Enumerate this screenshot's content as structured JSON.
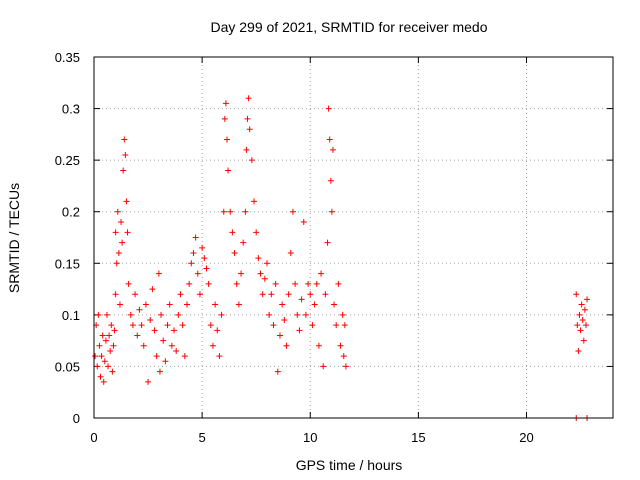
{
  "chart_data": {
    "type": "scatter",
    "title": "Day 299 of 2021, SRMTID for receiver medo",
    "xlabel": "GPS time / hours",
    "ylabel": "SRMTID / TECUs",
    "xlim": [
      0,
      24
    ],
    "ylim": [
      0,
      0.35
    ],
    "grid": true,
    "marker": "+",
    "color": "#ff0000",
    "xticks": [
      0,
      5,
      10,
      15,
      20
    ],
    "xtick_labels": [
      "0",
      "5",
      "10",
      "15",
      "20"
    ],
    "yticks": [
      0,
      0.05,
      0.1,
      0.15,
      0.2,
      0.25,
      0.3,
      0.35
    ],
    "ytick_labels": [
      "0",
      "0.05",
      "0.1",
      "0.15",
      "0.2",
      "0.25",
      "0.3",
      "0.35"
    ],
    "series": [
      {
        "name": "SRMTID",
        "points": [
          [
            0.05,
            0.06
          ],
          [
            0.1,
            0.09
          ],
          [
            0.15,
            0.05
          ],
          [
            0.2,
            0.1
          ],
          [
            0.25,
            0.07
          ],
          [
            0.3,
            0.04
          ],
          [
            0.35,
            0.06
          ],
          [
            0.4,
            0.08
          ],
          [
            0.45,
            0.035
          ],
          [
            0.5,
            0.055
          ],
          [
            0.55,
            0.075
          ],
          [
            0.6,
            0.1
          ],
          [
            0.65,
            0.05
          ],
          [
            0.7,
            0.08
          ],
          [
            0.75,
            0.065
          ],
          [
            0.8,
            0.09
          ],
          [
            0.85,
            0.045
          ],
          [
            0.9,
            0.07
          ],
          [
            0.95,
            0.085
          ],
          [
            1.0,
            0.12
          ],
          [
            1.0,
            0.18
          ],
          [
            1.05,
            0.15
          ],
          [
            1.1,
            0.2
          ],
          [
            1.15,
            0.16
          ],
          [
            1.2,
            0.11
          ],
          [
            1.25,
            0.19
          ],
          [
            1.3,
            0.17
          ],
          [
            1.35,
            0.24
          ],
          [
            1.4,
            0.27
          ],
          [
            1.45,
            0.255
          ],
          [
            1.5,
            0.21
          ],
          [
            1.55,
            0.18
          ],
          [
            1.6,
            0.13
          ],
          [
            1.7,
            0.1
          ],
          [
            1.8,
            0.09
          ],
          [
            1.9,
            0.12
          ],
          [
            2.0,
            0.08
          ],
          [
            2.1,
            0.105
          ],
          [
            2.2,
            0.09
          ],
          [
            2.3,
            0.07
          ],
          [
            2.4,
            0.11
          ],
          [
            2.5,
            0.035
          ],
          [
            2.6,
            0.095
          ],
          [
            2.7,
            0.125
          ],
          [
            2.8,
            0.085
          ],
          [
            2.9,
            0.06
          ],
          [
            3.0,
            0.14
          ],
          [
            3.05,
            0.045
          ],
          [
            3.1,
            0.1
          ],
          [
            3.2,
            0.075
          ],
          [
            3.3,
            0.055
          ],
          [
            3.4,
            0.09
          ],
          [
            3.5,
            0.11
          ],
          [
            3.6,
            0.07
          ],
          [
            3.7,
            0.085
          ],
          [
            3.8,
            0.065
          ],
          [
            3.9,
            0.1
          ],
          [
            4.0,
            0.12
          ],
          [
            4.1,
            0.09
          ],
          [
            4.2,
            0.06
          ],
          [
            4.3,
            0.11
          ],
          [
            4.4,
            0.13
          ],
          [
            4.5,
            0.15
          ],
          [
            4.6,
            0.16
          ],
          [
            4.7,
            0.175
          ],
          [
            4.8,
            0.14
          ],
          [
            4.9,
            0.12
          ],
          [
            5.0,
            0.165
          ],
          [
            5.1,
            0.155
          ],
          [
            5.2,
            0.145
          ],
          [
            5.3,
            0.13
          ],
          [
            5.4,
            0.09
          ],
          [
            5.5,
            0.07
          ],
          [
            5.6,
            0.11
          ],
          [
            5.7,
            0.085
          ],
          [
            5.8,
            0.06
          ],
          [
            5.9,
            0.1
          ],
          [
            6.0,
            0.2
          ],
          [
            6.05,
            0.29
          ],
          [
            6.1,
            0.305
          ],
          [
            6.15,
            0.27
          ],
          [
            6.2,
            0.24
          ],
          [
            6.3,
            0.2
          ],
          [
            6.4,
            0.18
          ],
          [
            6.5,
            0.16
          ],
          [
            6.6,
            0.13
          ],
          [
            6.7,
            0.11
          ],
          [
            6.8,
            0.14
          ],
          [
            6.9,
            0.17
          ],
          [
            7.0,
            0.2
          ],
          [
            7.05,
            0.26
          ],
          [
            7.1,
            0.29
          ],
          [
            7.15,
            0.31
          ],
          [
            7.2,
            0.28
          ],
          [
            7.3,
            0.25
          ],
          [
            7.4,
            0.21
          ],
          [
            7.5,
            0.18
          ],
          [
            7.6,
            0.155
          ],
          [
            7.7,
            0.14
          ],
          [
            7.8,
            0.12
          ],
          [
            7.9,
            0.135
          ],
          [
            8.0,
            0.15
          ],
          [
            8.1,
            0.1
          ],
          [
            8.2,
            0.12
          ],
          [
            8.3,
            0.09
          ],
          [
            8.4,
            0.13
          ],
          [
            8.5,
            0.045
          ],
          [
            8.6,
            0.08
          ],
          [
            8.7,
            0.11
          ],
          [
            8.8,
            0.095
          ],
          [
            8.9,
            0.07
          ],
          [
            9.0,
            0.12
          ],
          [
            9.1,
            0.16
          ],
          [
            9.2,
            0.2
          ],
          [
            9.3,
            0.13
          ],
          [
            9.4,
            0.1
          ],
          [
            9.5,
            0.085
          ],
          [
            9.6,
            0.115
          ],
          [
            9.7,
            0.19
          ],
          [
            9.8,
            0.1
          ],
          [
            9.9,
            0.13
          ],
          [
            10.0,
            0.12
          ],
          [
            10.1,
            0.09
          ],
          [
            10.2,
            0.11
          ],
          [
            10.3,
            0.13
          ],
          [
            10.4,
            0.07
          ],
          [
            10.5,
            0.14
          ],
          [
            10.6,
            0.05
          ],
          [
            10.7,
            0.12
          ],
          [
            10.8,
            0.17
          ],
          [
            10.85,
            0.3
          ],
          [
            10.9,
            0.27
          ],
          [
            10.95,
            0.23
          ],
          [
            11.0,
            0.2
          ],
          [
            11.05,
            0.26
          ],
          [
            11.1,
            0.11
          ],
          [
            11.2,
            0.09
          ],
          [
            11.3,
            0.13
          ],
          [
            11.4,
            0.07
          ],
          [
            11.5,
            0.1
          ],
          [
            11.55,
            0.06
          ],
          [
            11.6,
            0.09
          ],
          [
            11.65,
            0.05
          ],
          [
            22.3,
            0.12
          ],
          [
            22.35,
            0.09
          ],
          [
            22.4,
            0.065
          ],
          [
            22.45,
            0.1
          ],
          [
            22.5,
            0.085
          ],
          [
            22.55,
            0.11
          ],
          [
            22.6,
            0.095
          ],
          [
            22.65,
            0.075
          ],
          [
            22.7,
            0.105
          ],
          [
            22.75,
            0.09
          ],
          [
            22.8,
            0.115
          ],
          [
            22.3,
            0.0
          ],
          [
            22.8,
            0.0
          ]
        ]
      }
    ]
  }
}
